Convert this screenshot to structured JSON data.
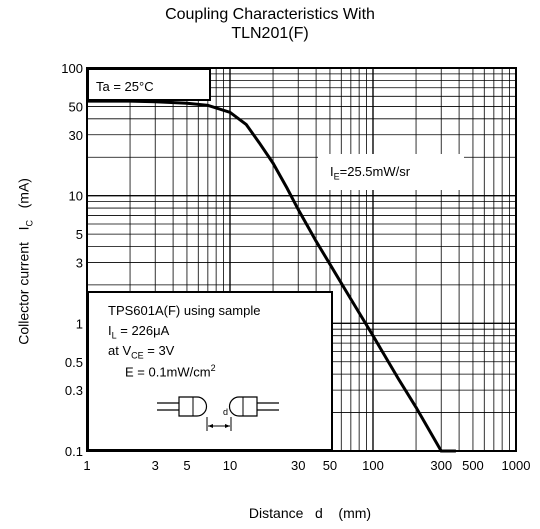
{
  "chart_data": {
    "type": "line",
    "title_line1": "Coupling Characteristics With",
    "title_line2": "TLN201(F)",
    "xlabel": "Distance   d    (mm)",
    "ylabel": "Collector current",
    "ylabel_symbol": "I",
    "ylabel_sub": "C",
    "ylabel_unit": "(mA)",
    "xscale": "log",
    "yscale": "log",
    "xlim": [
      1,
      1000
    ],
    "ylim": [
      0.1,
      100
    ],
    "grid": true,
    "xticks": [
      "1",
      "3",
      "5",
      "10",
      "30",
      "50",
      "100",
      "300",
      "500",
      "1000"
    ],
    "yticks": [
      "100",
      "50",
      "30",
      "10",
      "5",
      "3",
      "1",
      "0.5",
      "0.3",
      "0.1"
    ],
    "series": [
      {
        "x": [
          1,
          2,
          3,
          5,
          7,
          10,
          13,
          16,
          20,
          25,
          30,
          40,
          50,
          70,
          100,
          150,
          200,
          300,
          380
        ],
        "y": [
          55,
          55,
          54.5,
          53,
          51,
          45,
          36,
          26,
          18,
          11.5,
          7.8,
          4.4,
          2.9,
          1.55,
          0.8,
          0.37,
          0.22,
          0.1,
          0.062
        ]
      }
    ],
    "annotations": {
      "ta_label": "Ta = 25°C",
      "ie_label": "I",
      "ie_sub": "E",
      "ie_value": "=25.5mW/sr",
      "cond_line1": "TPS601A(F) using sample",
      "cond_l_sym": "I",
      "cond_l_sub": "L",
      "cond_l_val": " = 226μA",
      "cond_v_pre": "at V",
      "cond_v_sub": "CE",
      "cond_v_val": " = 3V",
      "cond_e_pre": "E = 0.1mW/cm",
      "cond_e_sup": "2",
      "d_label": "d"
    }
  }
}
